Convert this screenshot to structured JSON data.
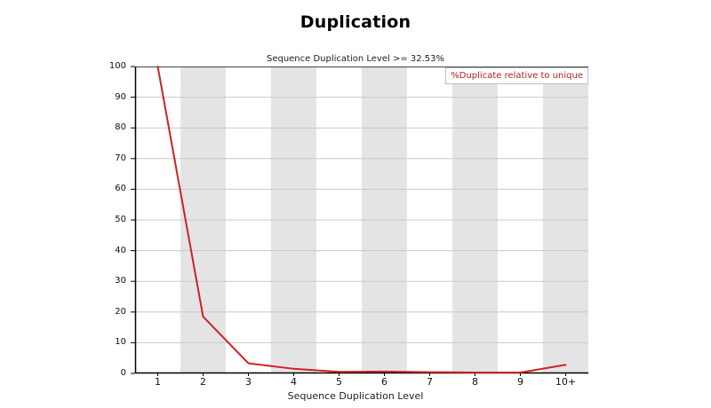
{
  "colors": {
    "line_red": "#cc2222",
    "legend_text_red": "#b22222",
    "band_gray": "#e4e4e4",
    "gridline_gray": "#c8c8c8",
    "plot_border": "#444444",
    "axis_black": "#000000",
    "legend_border": "#bdbdbd",
    "background": "#ffffff"
  },
  "chart_data": {
    "type": "line",
    "title": "Duplication",
    "subtitle": "Sequence Duplication Level >= 32.53%",
    "categories": [
      "1",
      "2",
      "3",
      "4",
      "5",
      "6",
      "7",
      "8",
      "9",
      "10+"
    ],
    "series": [
      {
        "name": "%Duplicate relative to unique",
        "values": [
          100,
          18.5,
          3.3,
          1.5,
          0.5,
          0.6,
          0.4,
          0.3,
          0.3,
          2.8
        ],
        "color": "#cc2222"
      }
    ],
    "xlabel": "Sequence Duplication Level",
    "ylabel": "",
    "ylim": [
      0,
      100
    ],
    "yticks": [
      0,
      10,
      20,
      30,
      40,
      50,
      60,
      70,
      80,
      90,
      100
    ],
    "grid": "horizontal gridlines every 10",
    "band_shading": "alternating vertical column bands (even categories shaded gray)",
    "legend_position": "top-right inside plot"
  }
}
